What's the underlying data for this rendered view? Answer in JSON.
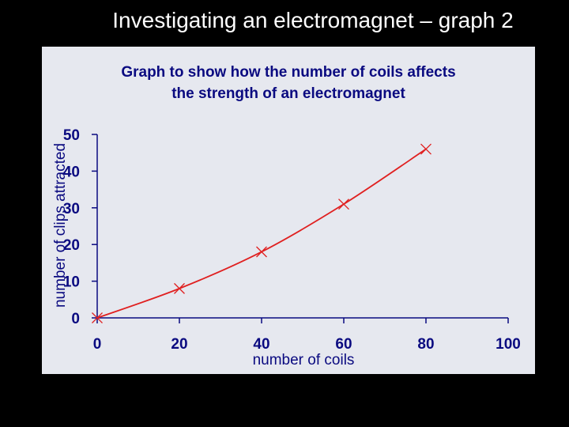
{
  "slide": {
    "title": "Investigating an electromagnet – graph 2"
  },
  "chart_data": {
    "type": "line",
    "title_lines": [
      "Graph to show how the number of coils affects",
      "the strength of an electromagnet"
    ],
    "xlabel": "number of coils",
    "ylabel": "number of clips attracted",
    "xlim": [
      0,
      100
    ],
    "ylim": [
      0,
      50
    ],
    "xticks": [
      "0",
      "20",
      "40",
      "60",
      "80",
      "100"
    ],
    "yticks": [
      "0",
      "10",
      "20",
      "30",
      "40",
      "50"
    ],
    "x": [
      0,
      20,
      40,
      60,
      80
    ],
    "y": [
      0,
      8,
      18,
      31,
      46
    ],
    "grid": false,
    "legend": "none",
    "colors": {
      "line": "#e02020",
      "axis": "#0a0a80",
      "text": "#0a0a80",
      "panel": "#e6e8ef"
    }
  }
}
